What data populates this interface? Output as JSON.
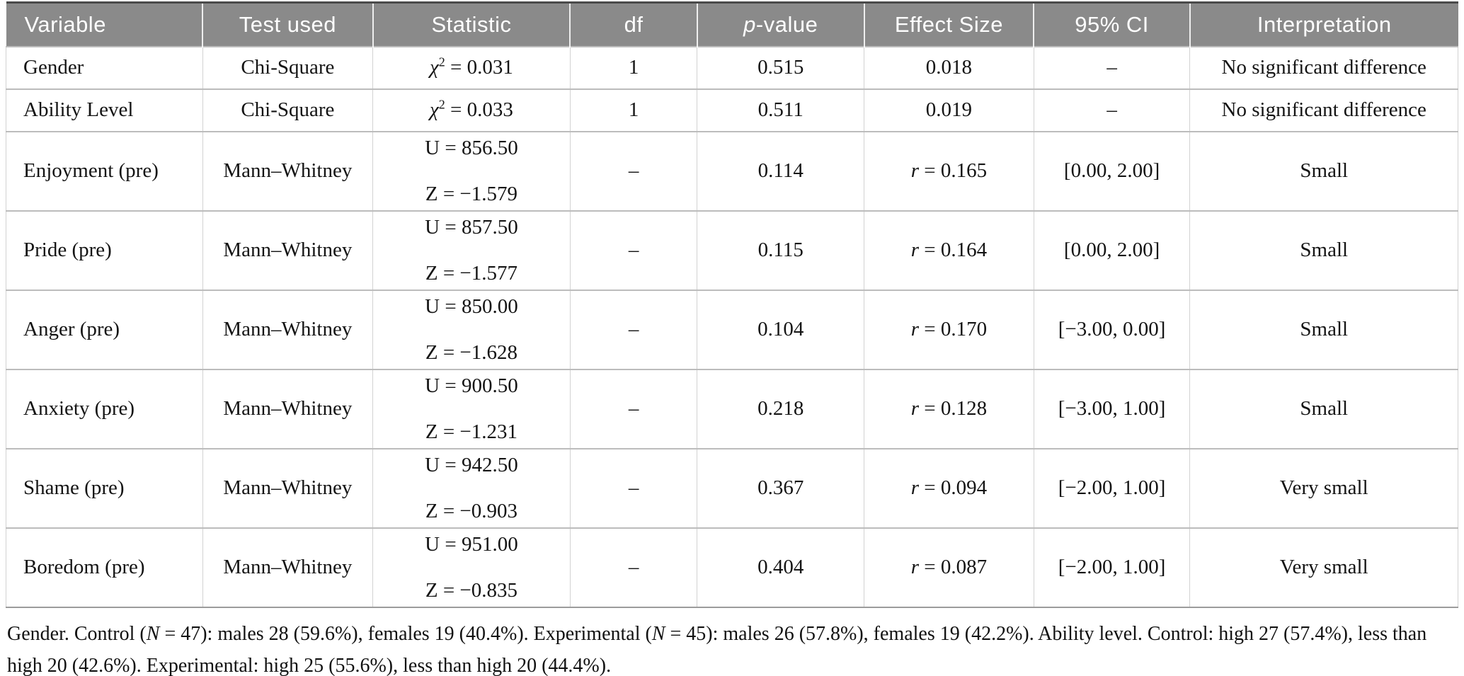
{
  "header": {
    "variable": "Variable",
    "test_used": "Test used",
    "statistic": "Statistic",
    "df": "df",
    "p_italic": "p",
    "p_rest": "-value",
    "effect_size": "Effect Size",
    "ci": "95% CI",
    "interpretation": "Interpretation"
  },
  "rows": [
    {
      "variable": "Gender",
      "test": "Chi-Square",
      "stat_symbol": "χ",
      "stat_sup": "2",
      "stat_rest": " = 0.031",
      "df": "1",
      "p": "0.515",
      "effect": "0.018",
      "ci": "–",
      "interpretation": "No significant difference"
    },
    {
      "variable": "Ability Level",
      "test": "Chi-Square",
      "stat_symbol": "χ",
      "stat_sup": "2",
      "stat_rest": " = 0.033",
      "df": "1",
      "p": "0.511",
      "effect": "0.019",
      "ci": "–",
      "interpretation": "No significant difference"
    },
    {
      "variable": "Enjoyment (pre)",
      "test": "Mann–Whitney",
      "stat_line1": "U = 856.50",
      "stat_line2": "Z = −1.579",
      "df": "–",
      "p": "0.114",
      "effect_prefix": "r",
      "effect_rest": " = 0.165",
      "ci": "[0.00, 2.00]",
      "interpretation": "Small"
    },
    {
      "variable": "Pride (pre)",
      "test": "Mann–Whitney",
      "stat_line1": "U = 857.50",
      "stat_line2": "Z = −1.577",
      "df": "–",
      "p": "0.115",
      "effect_prefix": "r",
      "effect_rest": " = 0.164",
      "ci": "[0.00, 2.00]",
      "interpretation": "Small"
    },
    {
      "variable": "Anger (pre)",
      "test": "Mann–Whitney",
      "stat_line1": "U = 850.00",
      "stat_line2": "Z = −1.628",
      "df": "–",
      "p": "0.104",
      "effect_prefix": "r",
      "effect_rest": " = 0.170",
      "ci": "[−3.00, 0.00]",
      "interpretation": "Small"
    },
    {
      "variable": "Anxiety (pre)",
      "test": "Mann–Whitney",
      "stat_line1": "U = 900.50",
      "stat_line2": "Z = −1.231",
      "df": "–",
      "p": "0.218",
      "effect_prefix": "r",
      "effect_rest": " = 0.128",
      "ci": "[−3.00, 1.00]",
      "interpretation": "Small"
    },
    {
      "variable": "Shame (pre)",
      "test": "Mann–Whitney",
      "stat_line1": "U = 942.50",
      "stat_line2": "Z = −0.903",
      "df": "–",
      "p": "0.367",
      "effect_prefix": "r",
      "effect_rest": " = 0.094",
      "ci": "[−2.00, 1.00]",
      "interpretation": "Very small"
    },
    {
      "variable": "Boredom (pre)",
      "test": "Mann–Whitney",
      "stat_line1": "U = 951.00",
      "stat_line2": "Z = −0.835",
      "df": "–",
      "p": "0.404",
      "effect_prefix": "r",
      "effect_rest": " = 0.087",
      "ci": "[−2.00, 1.00]",
      "interpretation": "Very small"
    }
  ],
  "footnote": {
    "parts": [
      "Gender. Control (",
      "N",
      " = 47): males 28 (59.6%), females 19 (40.4%). Experimental (",
      "N",
      " = 45): males 26 (57.8%), females 19 (42.2%). Ability level. Control: high 27 (57.4%), less than high 20 (42.6%). Experimental: high 25 (55.6%), less than high 20 (44.4%)."
    ]
  },
  "colors": {
    "header_bg": "#8a8a8a",
    "header_text": "#ffffff",
    "top_border": "#4a4a4a",
    "row_border": "#bcbcbc",
    "column_border": "#d2d2d2",
    "body_text": "#141414"
  }
}
